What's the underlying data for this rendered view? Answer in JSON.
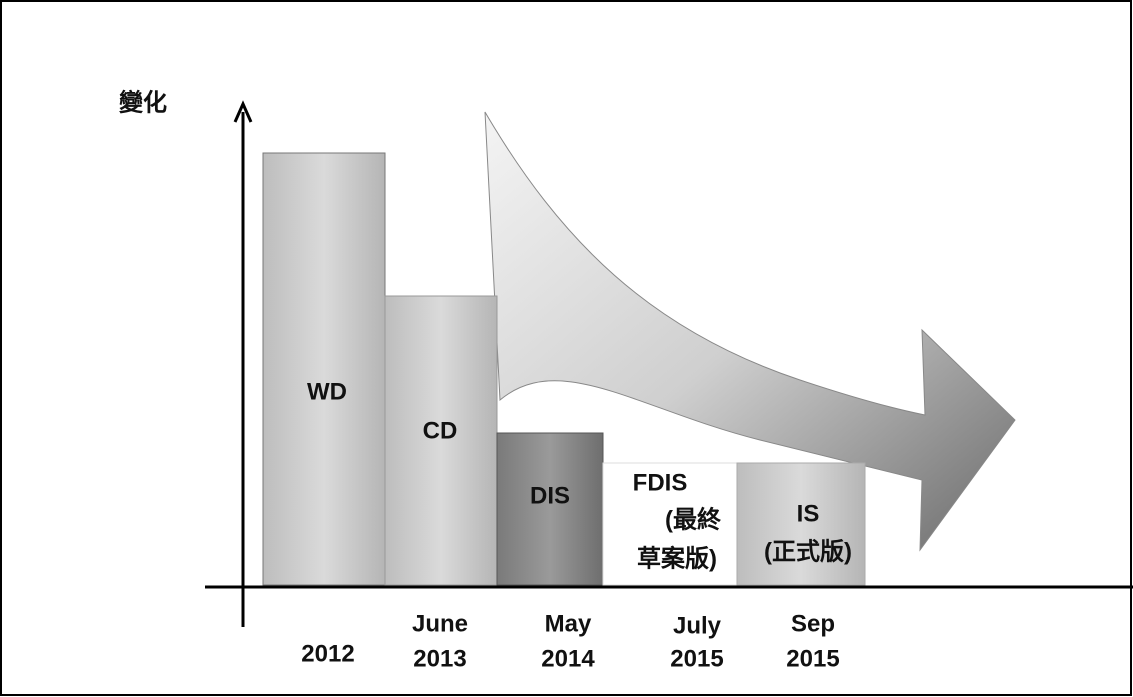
{
  "axis_label": "變化",
  "stages": [
    {
      "name": "WD",
      "date": [
        "2012"
      ]
    },
    {
      "name": "CD",
      "date": [
        "June",
        "2013"
      ]
    },
    {
      "name": "DIS",
      "date": [
        "May",
        "2014"
      ]
    },
    {
      "name": "FDIS",
      "note": [
        "(最終",
        "草案版)"
      ],
      "date": [
        "July",
        "2015"
      ]
    },
    {
      "name": "IS",
      "note": [
        "(正式版)"
      ],
      "date": [
        "Sep",
        "2015"
      ]
    }
  ]
}
